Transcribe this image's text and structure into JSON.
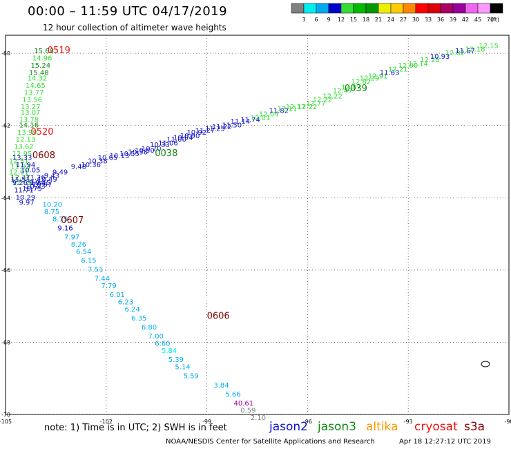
{
  "header": {
    "title": "00:00 – 11:59 UTC 04/17/2019",
    "subtitle": "12 hour collection of altimeter wave heights"
  },
  "footer": {
    "note": "note:  1) Time is in UTC;  2) SWH is in feet",
    "credit": "NOAA/NESDIS Center for Satellite Applications and Research",
    "timestamp": "Apr 18 12:27:12 UTC 2019"
  },
  "satellites": [
    {
      "name": "jason2",
      "color": "#1010cc"
    },
    {
      "name": "jason3",
      "color": "#118811"
    },
    {
      "name": "altika",
      "color": "#ff9900"
    },
    {
      "name": "cryosat",
      "color": "#ee1111"
    },
    {
      "name": "s3a",
      "color": "#880000"
    }
  ],
  "colorbar": {
    "colors": [
      "#808080",
      "#00eeee",
      "#00aaee",
      "#0000cc",
      "#33dd33",
      "#00bb00",
      "#009900",
      "#eeee00",
      "#ffcc00",
      "#ff8800",
      "#ff0000",
      "#dd0000",
      "#aa0066",
      "#990099",
      "#ee66ee",
      "#ff99ff",
      "#000000"
    ],
    "labels": [
      "3",
      "6",
      "9",
      "12",
      "15",
      "18",
      "21",
      "24",
      "27",
      "30",
      "33",
      "36",
      "39",
      "42",
      "45",
      "70",
      "(ft)"
    ]
  },
  "chart_data": {
    "type": "scatter",
    "title": "00:00 – 11:59 UTC 04/17/2019",
    "subtitle": "12 hour collection of altimeter wave heights",
    "xlabel": "",
    "ylabel": "",
    "xlim": [
      -105,
      -90
    ],
    "ylim": [
      -70,
      -59.5
    ],
    "grid": true,
    "x_ticks": [
      -105,
      -102,
      -99,
      -96,
      -93,
      -90
    ],
    "y_ticks": [
      -60,
      -62,
      -64,
      -66,
      -68,
      -70
    ],
    "units": "ft",
    "pass_labels": [
      {
        "text": "0519",
        "lon": -103.75,
        "lat": -60.0,
        "color": "#ee1111"
      },
      {
        "text": "0520",
        "lon": -104.25,
        "lat": -62.25,
        "color": "#ee1111"
      },
      {
        "text": "0608",
        "lon": -104.2,
        "lat": -62.9,
        "color": "#880000"
      },
      {
        "text": "0607",
        "lon": -103.35,
        "lat": -64.7,
        "color": "#880000"
      },
      {
        "text": "0038",
        "lon": -100.55,
        "lat": -62.85,
        "color": "#118811"
      },
      {
        "text": "0039",
        "lon": -94.9,
        "lat": -61.05,
        "color": "#118811"
      },
      {
        "text": "0606",
        "lon": -99.0,
        "lat": -67.35,
        "color": "#880000"
      }
    ],
    "series": [
      {
        "name": "",
        "lon": [
          -104.15,
          -104.2,
          -104.25,
          -104.3,
          -104.35,
          -104.4,
          -104.45,
          -104.5,
          -104.55,
          -104.55,
          -104.6,
          -104.6,
          -104.65,
          -104.7,
          -104.75,
          -104.8,
          -104.9,
          -104.85,
          -104.9,
          -104.85,
          -104.8
        ],
        "lat": [
          -60.0,
          -60.2,
          -60.4,
          -60.6,
          -60.75,
          -60.95,
          -61.15,
          -61.35,
          -61.55,
          -61.7,
          -61.9,
          -62.05,
          -62.25,
          -62.45,
          -62.65,
          -62.85,
          -63.05,
          -63.2,
          -63.35,
          -63.5,
          -63.65
        ],
        "values": [
          15.68,
          14.96,
          15.24,
          15.48,
          14.32,
          14.65,
          13.77,
          13.56,
          13.27,
          13.07,
          13.78,
          14.16,
          13.99,
          12.13,
          13.62,
          12.95,
          12.51,
          11.93,
          12.01,
          12.37,
          12.09
        ],
        "colors": [
          "#118811",
          "#33dd33",
          "#118811",
          "#118811",
          "#33dd33",
          "#33dd33",
          "#33dd33",
          "#33dd33",
          "#33dd33",
          "#33dd33",
          "#33dd33",
          "#118811",
          "#33dd33",
          "#33dd33",
          "#33dd33",
          "#33dd33",
          "#33dd33",
          "#33dd33",
          "#33dd33",
          "#118811",
          "#33dd33"
        ]
      },
      {
        "name": "",
        "lon": [
          -104.8,
          -104.7,
          -104.55,
          -104.4,
          -104.3,
          -104.2
        ],
        "lat": [
          -62.95,
          -63.15,
          -63.3,
          -63.5,
          -63.65,
          -63.7
        ],
        "values": [
          13.33,
          11.94,
          10.05,
          11.26,
          9.94,
          10.97
        ],
        "colors": [
          "#1010cc",
          "#1010cc",
          "#1010cc",
          "#1010cc",
          "#1010cc",
          "#1010cc"
        ]
      },
      {
        "name": "",
        "lon": [
          -104.85,
          -104.8,
          -104.75,
          -104.7,
          -104.6,
          -104.5,
          -104.4,
          -104.25,
          -104.05,
          -103.85,
          -103.6
        ],
        "lat": [
          -63.55,
          -63.65,
          -63.85,
          -64.05,
          -64.2,
          -63.8,
          -63.75,
          -63.65,
          -63.55,
          -63.45,
          -63.35
        ],
        "values": [
          11.51,
          9.26,
          11.71,
          10.29,
          9.97,
          10.75,
          10.23,
          10.45,
          10.49,
          9.43,
          9.49
        ],
        "colors": [
          "#1010cc",
          "#1010cc",
          "#1010cc",
          "#1010cc",
          "#1010cc",
          "#1010cc",
          "#1010cc",
          "#1010cc",
          "#1010cc",
          "#1010cc",
          "#1010cc"
        ]
      },
      {
        "name": "",
        "lon": [
          -103.9,
          -103.85,
          -103.6,
          -103.45,
          -103.25,
          -103.05,
          -102.9,
          -102.75,
          -102.55,
          -102.35,
          -102.15,
          -101.9,
          -101.65,
          -101.45,
          -101.25,
          -100.95,
          -100.75,
          -100.55,
          -100.35,
          -100.15,
          -99.95,
          -99.7
        ],
        "lat": [
          -64.25,
          -64.45,
          -64.65,
          -64.9,
          -65.15,
          -65.35,
          -65.55,
          -65.8,
          -66.05,
          -66.3,
          -66.5,
          -66.75,
          -66.95,
          -67.15,
          -67.4,
          -67.65,
          -67.9,
          -68.1,
          -68.3,
          -68.55,
          -68.75,
          -69.0
        ],
        "values": [
          10.2,
          8.75,
          8.75,
          9.16,
          7.97,
          8.26,
          6.54,
          6.15,
          7.51,
          7.44,
          7.79,
          6.01,
          6.23,
          6.24,
          6.35,
          6.8,
          7.0,
          6.6,
          5.84,
          5.39,
          5.14,
          5.59
        ],
        "colors": [
          "#00aaee",
          "#00aaee",
          "#00aaee",
          "#0000cc",
          "#00aaee",
          "#00aaee",
          "#00aaee",
          "#00aaee",
          "#00aaee",
          "#00aaee",
          "#00aaee",
          "#00aaee",
          "#00aaee",
          "#00aaee",
          "#00aaee",
          "#00aaee",
          "#00aaee",
          "#00aaee",
          "#00eeee",
          "#00aaee",
          "#00aaee",
          "#00aaee"
        ]
      },
      {
        "name": "",
        "lon": [
          -98.8,
          -98.45,
          -98.2,
          -98.0,
          -97.7
        ],
        "lat": [
          -69.25,
          -69.5,
          -69.75,
          -69.95,
          -70.15
        ],
        "values": [
          3.84,
          5.66,
          40.61,
          0.59,
          2.1
        ],
        "colors": [
          "#00aaee",
          "#00aaee",
          "#990099",
          "#808080",
          "#808080"
        ]
      },
      {
        "name": "",
        "lon": [
          -103.05,
          -102.75,
          -102.55,
          -102.25,
          -101.9,
          -101.6,
          -101.35,
          -101.15,
          -100.95,
          -100.7,
          -100.45,
          -100.2,
          -100.0,
          -99.8,
          -99.6,
          -99.35,
          -99.05,
          -98.85,
          -98.55,
          -98.3,
          -98.0,
          -97.7,
          -97.45,
          -97.15,
          -96.9,
          -96.65
        ],
        "lat": [
          -63.2,
          -63.15,
          -63.05,
          -62.95,
          -62.9,
          -62.85,
          -62.8,
          -62.75,
          -62.7,
          -62.6,
          -62.55,
          -62.45,
          -62.4,
          -62.35,
          -62.25,
          -62.2,
          -62.15,
          -62.1,
          -62.05,
          -61.95,
          -61.9,
          -61.85,
          -61.75,
          -61.65,
          -61.6,
          -61.55
        ],
        "values": [
          9.48,
          10.36,
          10.38,
          10.65,
          10.13,
          10.55,
          10.58,
          10.5,
          10.7,
          10.33,
          11.06,
          11.0,
          10.94,
          10.9,
          10.92,
          11.27,
          11.25,
          11.22,
          11.5,
          11.14,
          11.74,
          12.01,
          12.04,
          11.82,
          12.11,
          12.17
        ],
        "colors": [
          "#1010cc",
          "#1010cc",
          "#1010cc",
          "#1010cc",
          "#1010cc",
          "#1010cc",
          "#1010cc",
          "#1010cc",
          "#1010cc",
          "#1010cc",
          "#1010cc",
          "#1010cc",
          "#1010cc",
          "#1010cc",
          "#1010cc",
          "#1010cc",
          "#1010cc",
          "#1010cc",
          "#1010cc",
          "#1010cc",
          "#1010cc",
          "#33dd33",
          "#33dd33",
          "#1010cc",
          "#33dd33",
          "#33dd33"
        ]
      },
      {
        "name": "",
        "lon": [
          -96.3,
          -96.05,
          -95.85,
          -95.55,
          -95.25,
          -95.0,
          -94.7,
          -94.45,
          -94.2,
          -93.85,
          -93.6,
          -93.3,
          -93.0,
          -92.65,
          -92.35,
          -91.9,
          -91.6,
          -91.3,
          -90.9
        ],
        "lat": [
          -61.55,
          -61.45,
          -61.35,
          -61.25,
          -61.1,
          -61.0,
          -60.85,
          -60.75,
          -60.7,
          -60.6,
          -60.5,
          -60.4,
          -60.35,
          -60.25,
          -60.15,
          -60.05,
          -60.0,
          -59.95,
          -59.85
        ],
        "values": [
          12.22,
          12.77,
          12.22,
          12.22,
          12.47,
          12.87,
          12.82,
          12.29,
          12.91,
          11.63,
          12.21,
          12.0,
          12.14,
          12.28,
          10.93,
          12.82,
          11.67,
          12.18,
          12.15
        ],
        "colors": [
          "#33dd33",
          "#33dd33",
          "#33dd33",
          "#33dd33",
          "#33dd33",
          "#33dd33",
          "#33dd33",
          "#33dd33",
          "#33dd33",
          "#1010cc",
          "#33dd33",
          "#33dd33",
          "#33dd33",
          "#33dd33",
          "#1010cc",
          "#33dd33",
          "#1010cc",
          "#33dd33",
          "#33dd33"
        ]
      }
    ]
  }
}
